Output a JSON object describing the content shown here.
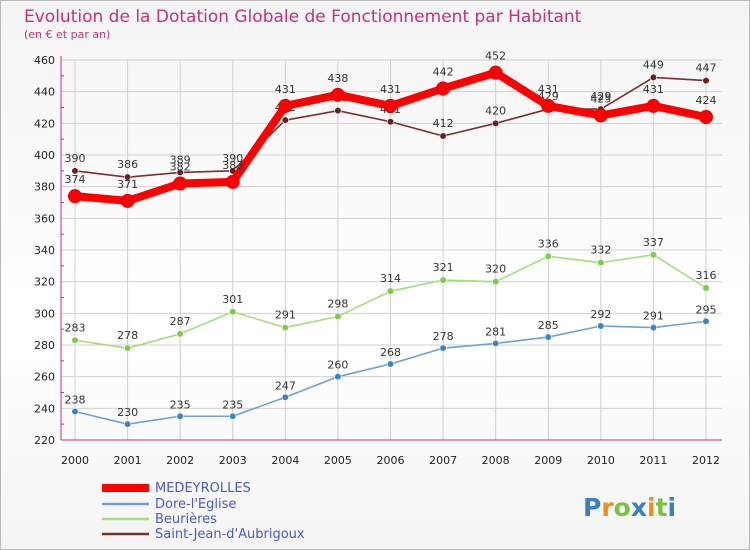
{
  "chart_data": {
    "type": "line",
    "title": "Evolution de la Dotation Globale de Fonctionnement par Habitant",
    "subtitle": "(en € et par an)",
    "x": [
      "2000",
      "2001",
      "2002",
      "2003",
      "2004",
      "2005",
      "2006",
      "2007",
      "2008",
      "2009",
      "2010",
      "2011",
      "2012"
    ],
    "ylim": [
      220,
      460
    ],
    "yticks": [
      "220",
      "240",
      "260",
      "280",
      "300",
      "320",
      "340",
      "360",
      "380",
      "400",
      "420",
      "440",
      "460"
    ],
    "grid": true,
    "legend_position": "bottom-left",
    "series": [
      {
        "name": "MEDEYROLLES",
        "color": "#ff0000",
        "marker": "#ff0000",
        "values": [
          374,
          371,
          382,
          383,
          431,
          438,
          431,
          442,
          452,
          431,
          425,
          431,
          424
        ],
        "labels": [
          "374",
          "371",
          "382",
          "383",
          "431",
          "438",
          "431",
          "442",
          "452",
          "431",
          "425",
          "431",
          "424"
        ]
      },
      {
        "name": "Dore-l'Eglise",
        "color": "#6fa0cf",
        "marker": "#3f85c4",
        "values": [
          238,
          230,
          235,
          235,
          247,
          260,
          268,
          278,
          281,
          285,
          292,
          291,
          295
        ],
        "labels": [
          "238",
          "230",
          "235",
          "235",
          "247",
          "260",
          "268",
          "278",
          "281",
          "285",
          "292",
          "291",
          "295"
        ]
      },
      {
        "name": "Beurières",
        "color": "#a5dc7e",
        "marker": "#7ccc49",
        "values": [
          283,
          278,
          287,
          301,
          291,
          298,
          314,
          321,
          320,
          336,
          332,
          337,
          316
        ],
        "labels": [
          "283",
          "278",
          "287",
          "301",
          "291",
          "298",
          "314",
          "321",
          "320",
          "336",
          "332",
          "337",
          "316"
        ]
      },
      {
        "name": "Saint-Jean-d'Aubrigoux",
        "color": "#7a2e2e",
        "marker": "#6b1e1e",
        "values": [
          390,
          386,
          389,
          390,
          422,
          428,
          421,
          412,
          420,
          429,
          429,
          449,
          447
        ],
        "labels": [
          "390",
          "386",
          "389",
          "390",
          "422",
          "428",
          "421",
          "412",
          "420",
          "429",
          "429",
          "449",
          "447"
        ]
      }
    ]
  },
  "brand": {
    "text": "Proxiti"
  }
}
